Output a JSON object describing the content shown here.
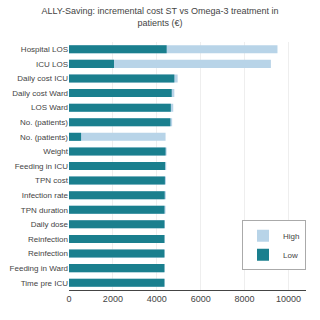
{
  "chart_data": {
    "type": "bar",
    "orientation": "horizontal",
    "title": "ALLY-Saving: incremental cost ST vs Omega-3 treatment in\npatients (€)",
    "categories": [
      "Hospital LOS",
      "ICU LOS",
      "Daily cost ICU",
      "Daily cost Ward",
      "LOS Ward",
      "No. (patients)",
      "No. (patients)",
      "Weight",
      "Feeding in ICU",
      "TPN cost",
      "Infection rate",
      "TPN duration",
      "Daily dose",
      "Reinfection",
      "Reinfection",
      "Feeding in Ward",
      "Time pre ICU"
    ],
    "series": [
      {
        "name": "High",
        "color": "#b8d4e8",
        "values": [
          9500,
          9200,
          4950,
          4800,
          4750,
          4700,
          4400,
          4450,
          4430,
          4420,
          4415,
          4400,
          4370,
          4355,
          4350,
          4350,
          4350
        ]
      },
      {
        "name": "Low",
        "color": "#1a7f8e",
        "values": [
          4450,
          2050,
          4800,
          4680,
          4640,
          4620,
          550,
          4400,
          4380,
          4370,
          4360,
          4350,
          4350,
          4350,
          4350,
          4350,
          4350
        ]
      }
    ],
    "xlim": [
      0,
      10800
    ],
    "xticks": [
      0,
      2000,
      4000,
      6000,
      8000,
      10000
    ],
    "grid": true,
    "legend": "lower right"
  }
}
